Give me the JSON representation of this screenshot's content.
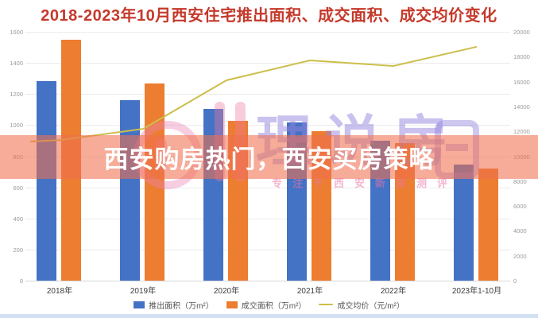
{
  "page": {
    "overlay_banner": {
      "text": "西安购房热门，西安买房策略",
      "band_color": "rgba(240,112,80,0.58)",
      "text_color": "#FFFFFF"
    },
    "watermark": {
      "logo": "pink-ring-logo",
      "text": "理说房",
      "tagline": "专注于西安新房测评",
      "text_color": "#9484DE",
      "accent_color": "#EC82B4"
    },
    "title_color": "#C5392B",
    "bottom_strip_color": "#D2E0F2"
  },
  "chart_data": {
    "type": "bar",
    "title": "2018-2023年10月西安住宅推出面积、成交面积、成交均价变化",
    "categories": [
      "2018年",
      "2019年",
      "2020年",
      "2021年",
      "2022年",
      "2023年1-10月"
    ],
    "series": [
      {
        "name": "推出面积（万m²）",
        "chart_type": "bar",
        "axis": "left",
        "color": "#4472C4",
        "values": [
          1285,
          1160,
          1105,
          1015,
          900,
          745
        ]
      },
      {
        "name": "成交面积（万m²）",
        "chart_type": "bar",
        "axis": "left",
        "color": "#ED7D31",
        "values": [
          1550,
          1270,
          1030,
          960,
          885,
          720
        ]
      },
      {
        "name": "成交均价（元/m²）",
        "chart_type": "line",
        "axis": "right",
        "color": "#CDBE4B",
        "values": [
          11300,
          12200,
          16100,
          17700,
          17250,
          18800
        ],
        "line_extends_to_left_edge_value": 11180
      }
    ],
    "left_axis": {
      "min": 0,
      "max": 1600,
      "step": 200
    },
    "right_axis": {
      "min": 0,
      "max": 20000,
      "step": 2000
    },
    "grid": true,
    "legend_position": "bottom"
  }
}
